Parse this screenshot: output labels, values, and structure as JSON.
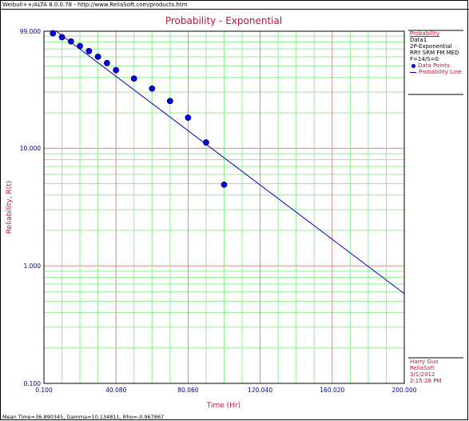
{
  "window": {
    "header_text": "Weibull++/ALTA 8.0.0.78 - http://www.ReliaSoft.com/products.htm",
    "footer_text": "Mean Time=36.890345, Gamma=10.134811, Rho=-0.967867"
  },
  "legend": {
    "title": "Probability",
    "data_name": "Data1",
    "model": "2P-Exponential",
    "method": "RRY SRM FM MED",
    "counts": "F=14/S=0",
    "points_label": "Data Points",
    "line_label": "Probability Line"
  },
  "credit": {
    "author": "Harry Guo",
    "company": "ReliaSoft",
    "date": "3/1/2012",
    "time": "2:15:28 PM"
  },
  "colors": {
    "title": "#c4122f",
    "axis_text": "#00008b",
    "major_grid": "#f08080",
    "minor_grid": "#90ee90",
    "points": "#0000e0",
    "line": "#0000c0"
  },
  "chart_data": {
    "type": "scatter",
    "title": "Probability - Exponential",
    "xlabel": "Time (Hr)",
    "ylabel": "Reliability, R(t)",
    "xlim": [
      0,
      200
    ],
    "ylim": [
      0.1,
      99
    ],
    "yscale": "log",
    "x_ticks": [
      "0.100",
      "40.080",
      "80.060",
      "120.040",
      "160.020",
      "200.000"
    ],
    "y_ticks": [
      "0.100",
      "1.000",
      "10.000",
      "99.000"
    ],
    "grid": true,
    "legend_position": "right",
    "series": [
      {
        "name": "Data Points",
        "kind": "points",
        "x": [
          5,
          10,
          15,
          20,
          25,
          30,
          35,
          40,
          50,
          60,
          70,
          80,
          90,
          100
        ],
        "y": [
          95.1,
          88.1,
          81.1,
          74.1,
          67.1,
          60.1,
          53.1,
          46.2,
          39.2,
          32.2,
          25.2,
          18.2,
          11.2,
          4.9
        ]
      },
      {
        "name": "Probability Line",
        "kind": "line",
        "x": [
          6.8,
          200
        ],
        "y": [
          99,
          0.58
        ]
      }
    ]
  }
}
